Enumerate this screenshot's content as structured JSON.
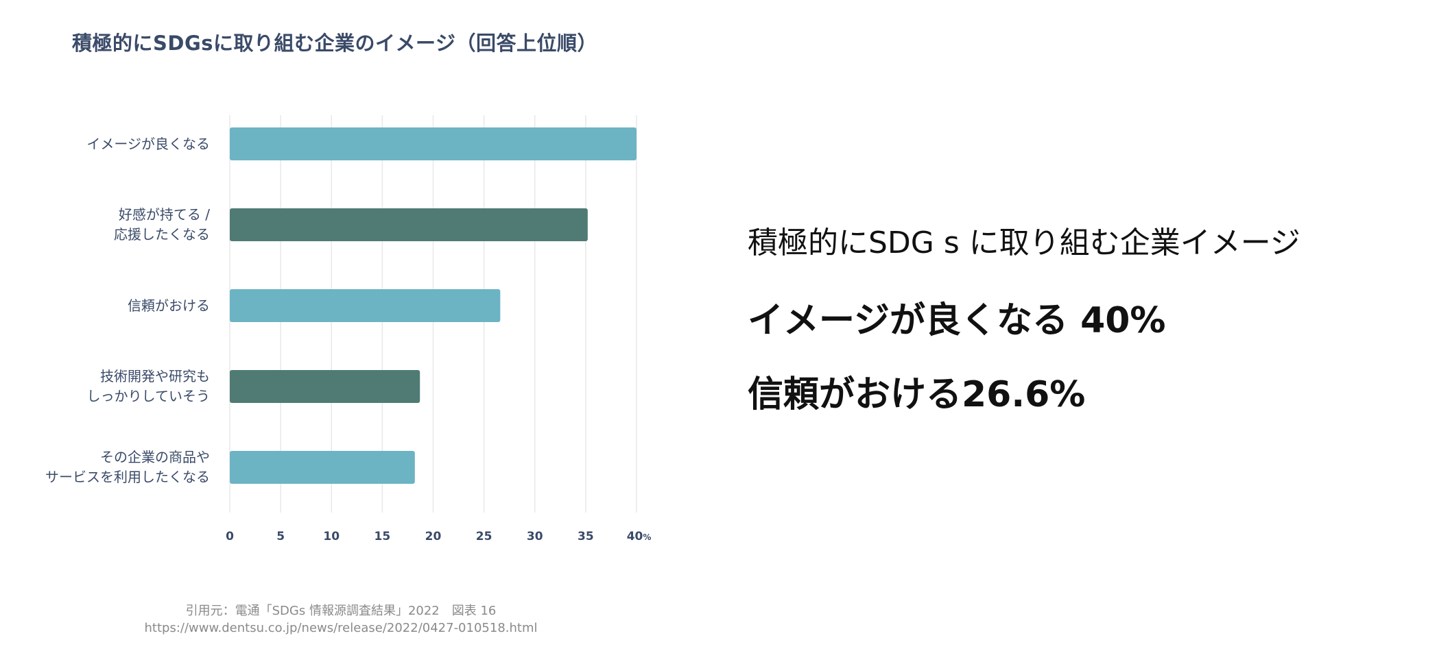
{
  "chart_data": {
    "type": "bar",
    "orientation": "horizontal",
    "title": "積極的にSDGsに取り組む企業のイメージ（回答上位順）",
    "categories": [
      "イメージが良くなる",
      "好感が持てる /\n応援したくなる",
      "信頼がおける",
      "技術開発や研究も\nしっかりしていそう",
      "その企業の商品や\nサービスを利用したくなる"
    ],
    "values": [
      40.0,
      35.2,
      26.6,
      18.7,
      18.2
    ],
    "bar_colors": [
      "#6cb3c4",
      "#4f7b74",
      "#6cb3c4",
      "#4f7b74",
      "#6cb3c4"
    ],
    "xlim": [
      0,
      40
    ],
    "xticks": [
      "0",
      "5",
      "10",
      "15",
      "20",
      "25",
      "30",
      "35",
      "40"
    ],
    "x_unit": "%",
    "grid": true
  },
  "source": {
    "line1": "引用元：電通「SDGs 情報源調査結果」2022　図表 16",
    "line2": "https://www.dentsu.co.jp/news/release/2022/0427-010518.html"
  },
  "summary": {
    "heading": "積極的にSDG s に取り組む企業イメージ",
    "line1": "イメージが良くなる 40%",
    "line2": "信頼がおける26.6%"
  },
  "colors": {
    "teal": "#6cb3c4",
    "dark_green": "#4f7b74",
    "label_text": "#3a4a68",
    "grid": "#e8e8e8"
  }
}
